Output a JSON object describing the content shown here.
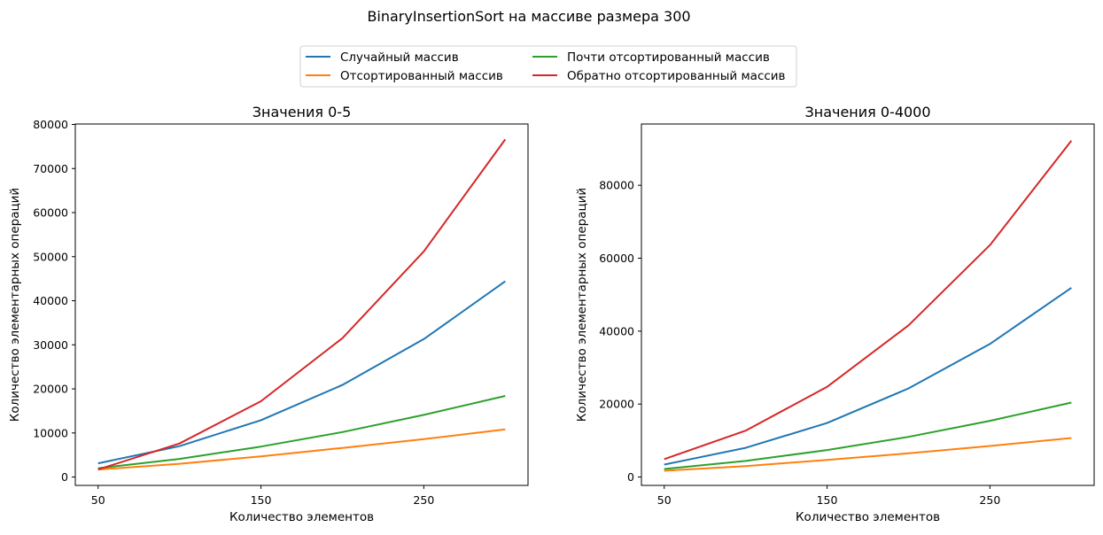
{
  "suptitle": "BinaryInsertionSort на массиве размера 300",
  "legend": {
    "placement": "top-center",
    "columns": 2,
    "entries": [
      {
        "label": "Случайный массив",
        "color": "#1f77b4"
      },
      {
        "label": "Отсортированный массив",
        "color": "#ff7f0e"
      },
      {
        "label": "Почти отсортированный массив",
        "color": "#2ca02c"
      },
      {
        "label": "Обратно отсортированный массив",
        "color": "#d62728"
      }
    ]
  },
  "chart_data": [
    {
      "type": "line",
      "title": "Значения 0-5",
      "xlabel": "Количество элементов",
      "ylabel": "Количество элементарных операций",
      "x": [
        50,
        100,
        150,
        200,
        250,
        300
      ],
      "xticks": [
        50,
        150,
        250
      ],
      "xlim": [
        36,
        314
      ],
      "yticks": [
        0,
        10000,
        20000,
        30000,
        40000,
        50000,
        60000,
        70000,
        80000
      ],
      "ylim": [
        -1900,
        80100
      ],
      "grid": false,
      "series": [
        {
          "name": "Случайный массив",
          "color": "#1f77b4",
          "values": [
            3100,
            7000,
            12900,
            20900,
            31300,
            44400
          ]
        },
        {
          "name": "Отсортированный массив",
          "color": "#ff7f0e",
          "values": [
            1700,
            3000,
            4700,
            6600,
            8600,
            10800
          ]
        },
        {
          "name": "Почти отсортированный массив",
          "color": "#2ca02c",
          "values": [
            2000,
            4100,
            6900,
            10200,
            14100,
            18400
          ]
        },
        {
          "name": "Обратно отсортированный массив",
          "color": "#d62728",
          "values": [
            1700,
            7600,
            17200,
            31500,
            51200,
            76600
          ]
        }
      ]
    },
    {
      "type": "line",
      "title": "Значения 0-4000",
      "xlabel": "Количество элементов",
      "ylabel": "Количество элементарных операций",
      "x": [
        50,
        100,
        150,
        200,
        250,
        300
      ],
      "xticks": [
        50,
        150,
        250
      ],
      "xlim": [
        36,
        314
      ],
      "yticks": [
        0,
        20000,
        40000,
        60000,
        80000
      ],
      "ylim": [
        -2300,
        96800
      ],
      "grid": false,
      "series": [
        {
          "name": "Случайный массив",
          "color": "#1f77b4",
          "values": [
            3400,
            8000,
            14800,
            24300,
            36500,
            51900
          ]
        },
        {
          "name": "Отсортированный массив",
          "color": "#ff7f0e",
          "values": [
            1700,
            3000,
            4700,
            6500,
            8500,
            10700
          ]
        },
        {
          "name": "Почти отсортированный массив",
          "color": "#2ca02c",
          "values": [
            2200,
            4400,
            7400,
            11000,
            15400,
            20400
          ]
        },
        {
          "name": "Обратно отсортированный массив",
          "color": "#d62728",
          "values": [
            4900,
            12700,
            24700,
            41600,
            63600,
            92200
          ]
        }
      ]
    }
  ]
}
